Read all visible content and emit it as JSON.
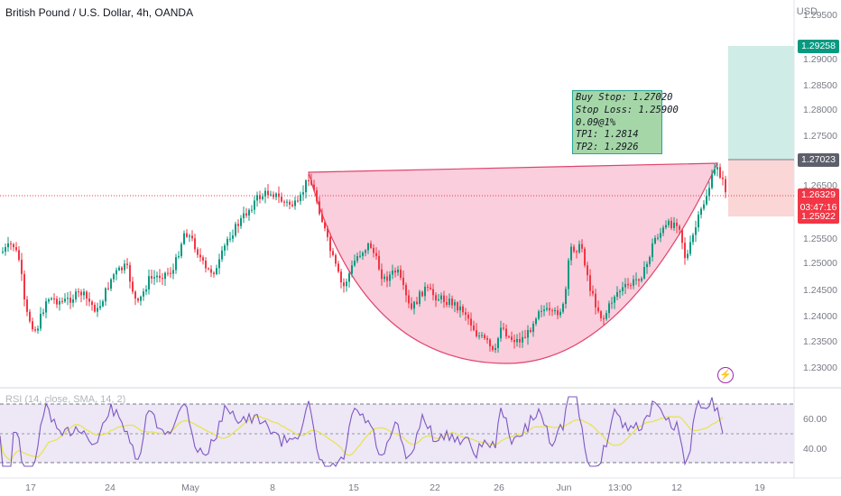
{
  "header": {
    "title": "British Pound / U.S. Dollar, 4h, OANDA",
    "currency": "USD"
  },
  "price_axis": {
    "ticks": [
      "1.29500",
      "1.29000",
      "1.28500",
      "1.28000",
      "1.27500",
      "1.26500",
      "1.25500",
      "1.25000",
      "1.24500",
      "1.24000",
      "1.23500",
      "1.23000"
    ],
    "tags": {
      "take_profit": "1.29258",
      "entry": "1.27023",
      "current_price": "1.26329",
      "countdown": "03:47:16",
      "stop_loss": "1.25922"
    }
  },
  "time_axis": {
    "ticks": [
      "17",
      "24",
      "May",
      "8",
      "15",
      "22",
      "26",
      "Jun",
      "13:00",
      "12",
      "19"
    ]
  },
  "note": {
    "lines": [
      "Buy Stop: 1.27020",
      "Stop Loss: 1.25900",
      "0.09@1%",
      "TP1: 1.2814",
      "TP2: 1.2926"
    ]
  },
  "rsi": {
    "label": "RSI (14, close, SMA, 14, 2)",
    "ticks": [
      "60.00",
      "40.00"
    ]
  },
  "icons": {
    "alert": "lightning-bolt-icon"
  },
  "colors": {
    "up": "#089981",
    "down": "#f23645",
    "pattern_fill": "#f9c9d8",
    "pattern_stroke": "#e0436c",
    "rsi_line": "#7e57c2",
    "rsi_sma": "#e8e34a",
    "rsi_band": "#ede7f6"
  }
}
